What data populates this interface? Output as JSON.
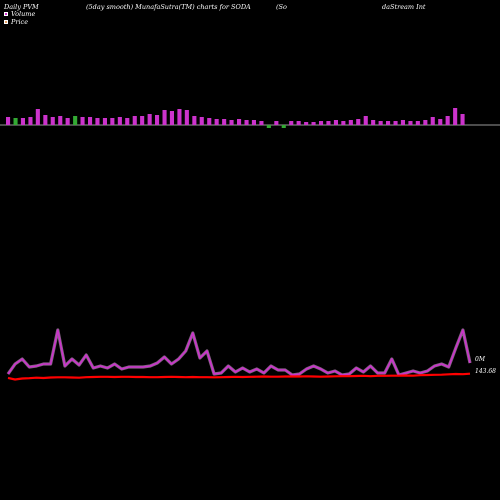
{
  "header": {
    "left": "Daily PVM",
    "mid": "(5day smooth) MunafaSutra(TM) charts for SODA",
    "right_a": "(So",
    "right_b": "daStream Int"
  },
  "legend": [
    {
      "label": "Volume",
      "color": "#cc33cc"
    },
    {
      "label": "Price",
      "color": "#e8a060"
    }
  ],
  "chart_data": [
    {
      "type": "bar",
      "series": [
        {
          "name": "Volume",
          "up_color": "#cc33cc",
          "down_color": "#33aa33",
          "values": [
            8,
            7,
            7,
            8,
            16,
            10,
            8,
            9,
            7,
            9,
            8,
            8,
            7,
            7,
            7,
            8,
            7,
            9,
            9,
            11,
            10,
            15,
            14,
            16,
            15,
            9,
            8,
            7,
            6,
            6,
            5,
            6,
            5,
            5,
            4,
            -3,
            4,
            -3,
            4,
            4,
            3,
            3,
            4,
            4,
            5,
            4,
            5,
            6,
            9,
            5,
            4,
            4,
            4,
            5,
            4,
            4,
            5,
            8,
            6,
            9,
            17,
            11
          ],
          "positive": [
            true,
            false,
            true,
            true,
            true,
            true,
            true,
            true,
            true,
            false,
            true,
            true,
            true,
            true,
            true,
            true,
            true,
            true,
            true,
            true,
            true,
            true,
            true,
            true,
            true,
            true,
            true,
            true,
            true,
            true,
            true,
            true,
            true,
            true,
            true,
            false,
            true,
            false,
            true,
            true,
            true,
            true,
            true,
            true,
            true,
            true,
            true,
            true,
            true,
            true,
            true,
            true,
            true,
            true,
            true,
            true,
            true,
            true,
            true,
            true,
            true,
            true
          ]
        }
      ]
    },
    {
      "type": "line",
      "series": [
        {
          "name": "Volume",
          "color": "#cc33cc",
          "values": [
            4,
            14,
            19,
            11,
            12,
            14,
            14,
            48,
            12,
            19,
            13,
            23,
            10,
            12,
            10,
            14,
            9,
            11,
            11,
            11,
            12,
            15,
            21,
            14,
            19,
            27,
            45,
            20,
            27,
            4,
            5,
            12,
            6,
            10,
            6,
            9,
            5,
            12,
            8,
            8,
            3,
            4,
            9,
            12,
            9,
            5,
            7,
            3,
            4,
            10,
            6,
            12,
            5,
            5,
            19,
            3,
            5,
            7,
            5,
            7,
            12,
            14,
            11,
            30,
            48,
            15
          ]
        },
        {
          "name": "Price",
          "color": "#ff0000",
          "values": [
            143.68,
            143.2,
            143.5,
            143.6,
            143.75,
            143.65,
            143.8,
            143.85,
            143.85,
            143.8,
            143.75,
            143.9,
            143.95,
            144.0,
            144.0,
            143.95,
            144.0,
            144.0,
            143.95,
            143.95,
            143.9,
            143.9,
            143.95,
            144.0,
            143.95,
            143.9,
            143.95,
            143.9,
            143.9,
            143.85,
            143.9,
            143.95,
            144.0,
            143.95,
            144.0,
            144.05,
            144.1,
            144.05,
            144.05,
            144.1,
            144.1,
            144.1,
            144.15,
            144.1,
            144.05,
            144.1,
            144.15,
            144.2,
            144.2,
            144.25,
            144.3,
            144.2,
            144.3,
            144.3,
            144.35,
            144.35,
            144.4,
            144.35,
            144.5,
            144.55,
            144.6,
            144.65,
            144.75,
            144.85,
            144.8,
            144.95
          ]
        }
      ],
      "right_labels": [
        "0M",
        "143.68"
      ]
    }
  ]
}
